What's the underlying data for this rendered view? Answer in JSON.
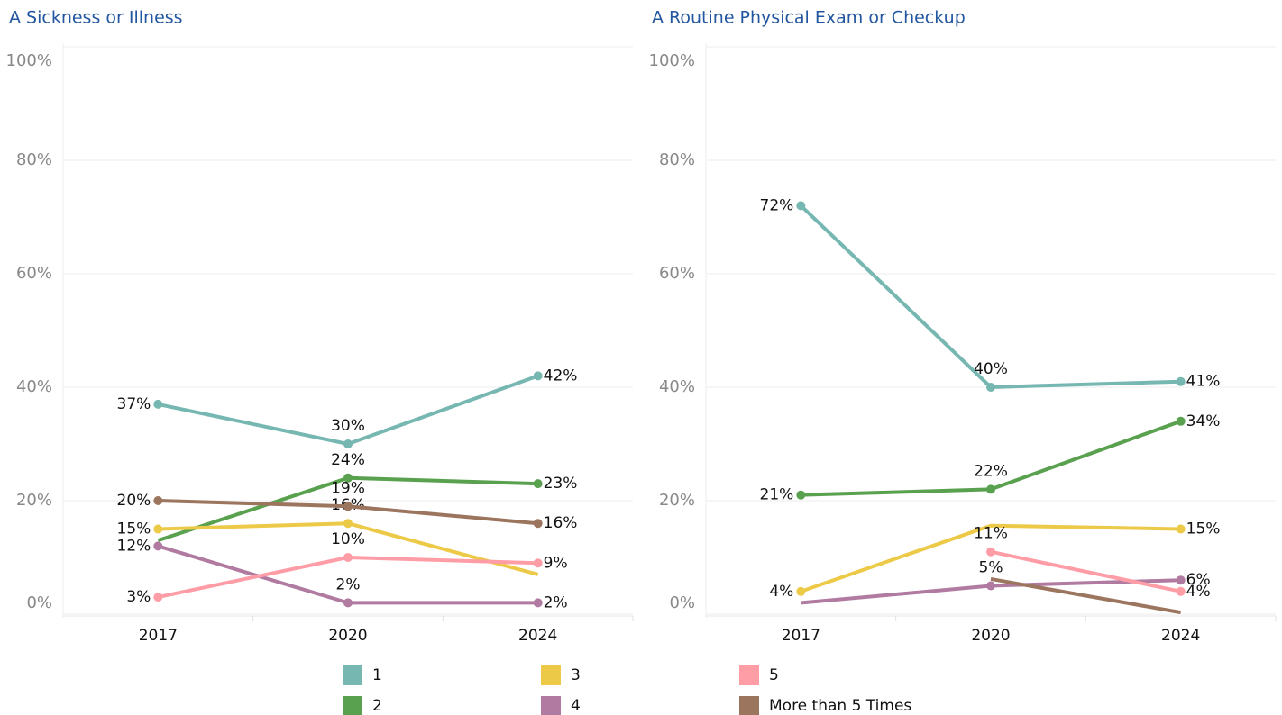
{
  "chart_data": [
    {
      "type": "line",
      "title": "A Sickness or Illness",
      "categories": [
        "2017",
        "2020",
        "2024"
      ],
      "ylim": [
        0,
        100
      ],
      "yticks": [
        {
          "value": 0,
          "label": "0%"
        },
        {
          "value": 20,
          "label": "20%"
        },
        {
          "value": 40,
          "label": "40%"
        },
        {
          "value": 60,
          "label": "60%"
        },
        {
          "value": 80,
          "label": "80%"
        },
        {
          "value": 100,
          "label": "100%"
        }
      ],
      "grid": true,
      "series": [
        {
          "name": "1",
          "color": "#76b7b2",
          "values": [
            37,
            30,
            42
          ],
          "value_labels": [
            "37%",
            "30%",
            "42%"
          ]
        },
        {
          "name": "2",
          "color": "#59a14f",
          "values": [
            13,
            24,
            23
          ],
          "value_labels": [
            null,
            "24%",
            "23%"
          ]
        },
        {
          "name": "3",
          "color": "#edc948",
          "values": [
            15,
            16,
            7
          ],
          "value_labels": [
            "15%",
            "16%",
            null
          ]
        },
        {
          "name": "4",
          "color": "#b07aa1",
          "values": [
            12,
            2,
            2
          ],
          "value_labels": [
            "12%",
            "2%",
            "2%"
          ]
        },
        {
          "name": "5",
          "color": "#ff9da7",
          "values": [
            3,
            10,
            9
          ],
          "value_labels": [
            "3%",
            "10%",
            "9%"
          ]
        },
        {
          "name": "More than 5 Times",
          "color": "#9c755f",
          "values": [
            20,
            19,
            16
          ],
          "value_labels": [
            "20%",
            "19%",
            "16%"
          ]
        }
      ]
    },
    {
      "type": "line",
      "title": "A Routine Physical Exam or Checkup",
      "categories": [
        "2017",
        "2020",
        "2024"
      ],
      "ylim": [
        0,
        100
      ],
      "yticks": [
        {
          "value": 0,
          "label": "0%"
        },
        {
          "value": 20,
          "label": "20%"
        },
        {
          "value": 40,
          "label": "40%"
        },
        {
          "value": 60,
          "label": "60%"
        },
        {
          "value": 80,
          "label": "80%"
        },
        {
          "value": 100,
          "label": "100%"
        }
      ],
      "grid": true,
      "series": [
        {
          "name": "1",
          "color": "#76b7b2",
          "values": [
            72,
            40,
            41
          ],
          "value_labels": [
            "72%",
            "40%",
            "41%"
          ]
        },
        {
          "name": "2",
          "color": "#59a14f",
          "values": [
            21,
            22,
            34
          ],
          "value_labels": [
            "21%",
            "22%",
            "34%"
          ]
        },
        {
          "name": "3",
          "color": "#edc948",
          "values": [
            4,
            15.6,
            15
          ],
          "value_labels": [
            "4%",
            null,
            "15%"
          ]
        },
        {
          "name": "4",
          "color": "#b07aa1",
          "values": [
            2,
            5,
            6
          ],
          "value_labels": [
            null,
            "5%",
            "6%"
          ]
        },
        {
          "name": "5",
          "color": "#ff9da7",
          "values": [
            null,
            11,
            4
          ],
          "value_labels": [
            null,
            "11%",
            "4%"
          ]
        },
        {
          "name": "More than 5 Times",
          "color": "#9c755f",
          "values": [
            null,
            6.2,
            0.3
          ],
          "value_labels": [
            null,
            null,
            null
          ]
        }
      ]
    }
  ]
}
